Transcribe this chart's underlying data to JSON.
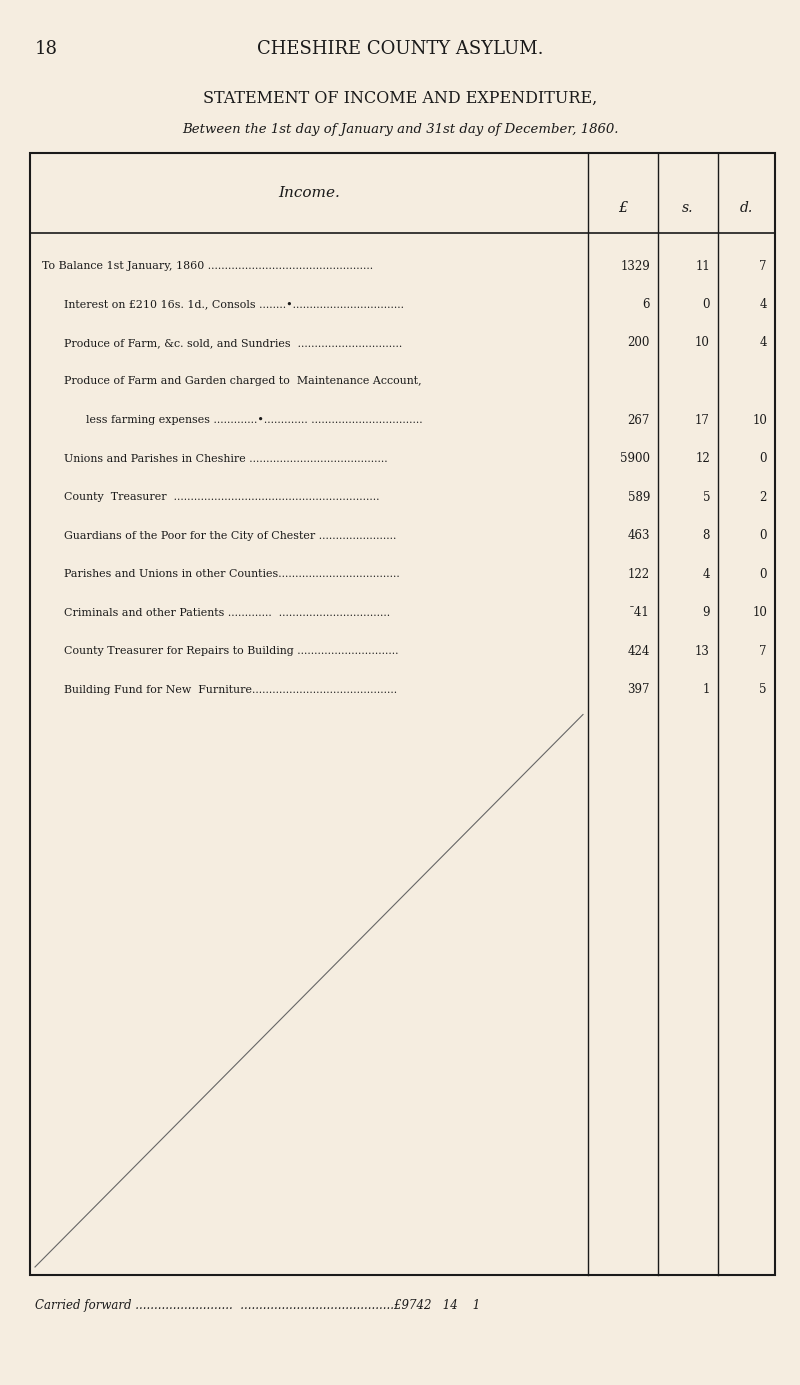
{
  "page_number": "18",
  "page_header": "CHESHIRE COUNTY ASYLUM.",
  "title_line1": "STATEMENT OF INCOME AND EXPENDITURE,",
  "title_line2": "Between the 1st day of January and 31st day of December, 1860.",
  "table_header": "Income.",
  "col_headers": [
    "£",
    "s.",
    "d."
  ],
  "rows": [
    {
      "label": "To Balance 1st January, 1860 .................................................",
      "indent": 0,
      "pounds": "1329",
      "shillings": "11",
      "pence": "7"
    },
    {
      "label": "Interest on £210 16s. 1d., Consols ........•.................................",
      "indent": 4,
      "pounds": "6",
      "shillings": "0",
      "pence": "4"
    },
    {
      "label": "Produce of Farm, &c. sold, and Sundries  ...............................",
      "indent": 4,
      "pounds": "200",
      "shillings": "10",
      "pence": "4"
    },
    {
      "label": "Produce of Farm and Garden charged to  Maintenance Account,",
      "indent": 4,
      "pounds": "",
      "shillings": "",
      "pence": ""
    },
    {
      "label": "less farming expenses .............•............. .................................",
      "indent": 8,
      "pounds": "267",
      "shillings": "17",
      "pence": "10"
    },
    {
      "label": "Unions and Parishes in Cheshire .........................................",
      "indent": 4,
      "pounds": "5900",
      "shillings": "12",
      "pence": "0"
    },
    {
      "label": "County  Treasurer  .............................................................",
      "indent": 4,
      "pounds": "589",
      "shillings": "5",
      "pence": "2"
    },
    {
      "label": "Guardians of the Poor for the City of Chester .......................",
      "indent": 4,
      "pounds": "463",
      "shillings": "8",
      "pence": "0"
    },
    {
      "label": "Parishes and Unions in other Counties....................................",
      "indent": 4,
      "pounds": "122",
      "shillings": "4",
      "pence": "0"
    },
    {
      "label": "Criminals and other Patients .............  .................................",
      "indent": 4,
      "pounds": "¯41",
      "shillings": "9",
      "pence": "10"
    },
    {
      "label": "County Treasurer for Repairs to Building ..............................",
      "indent": 4,
      "pounds": "424",
      "shillings": "13",
      "pence": "7"
    },
    {
      "label": "Building Fund for New  Furniture...........................................",
      "indent": 4,
      "pounds": "397",
      "shillings": "1",
      "pence": "5"
    }
  ],
  "carried_forward": "Carried forward ..........................  .........................................£9742   14    1",
  "bg_color": "#f5ede0",
  "text_color": "#1a1a1a",
  "diagonal_line": true
}
